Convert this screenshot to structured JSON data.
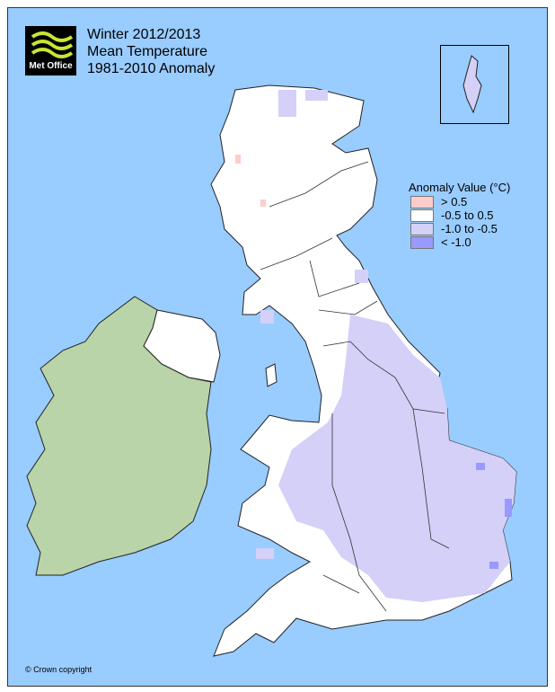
{
  "logo": {
    "text": "Met Office"
  },
  "title": {
    "line1": "Winter 2012/2013",
    "line2": "Mean Temperature",
    "line3": "1981-2010 Anomaly"
  },
  "legend": {
    "title": "Anomaly Value (°C)",
    "items": [
      {
        "label": "> 0.5",
        "color": "#ffcccc"
      },
      {
        "label": "-0.5 to 0.5",
        "color": "#ffffff"
      },
      {
        "label": "-1.0 to -0.5",
        "color": "#d4d0f8"
      },
      {
        "label": "< -1.0",
        "color": "#9999ff"
      }
    ]
  },
  "colors": {
    "sea": "#99ccff",
    "ireland": "#b8d4a8"
  },
  "copyright": "© Crown copyright"
}
